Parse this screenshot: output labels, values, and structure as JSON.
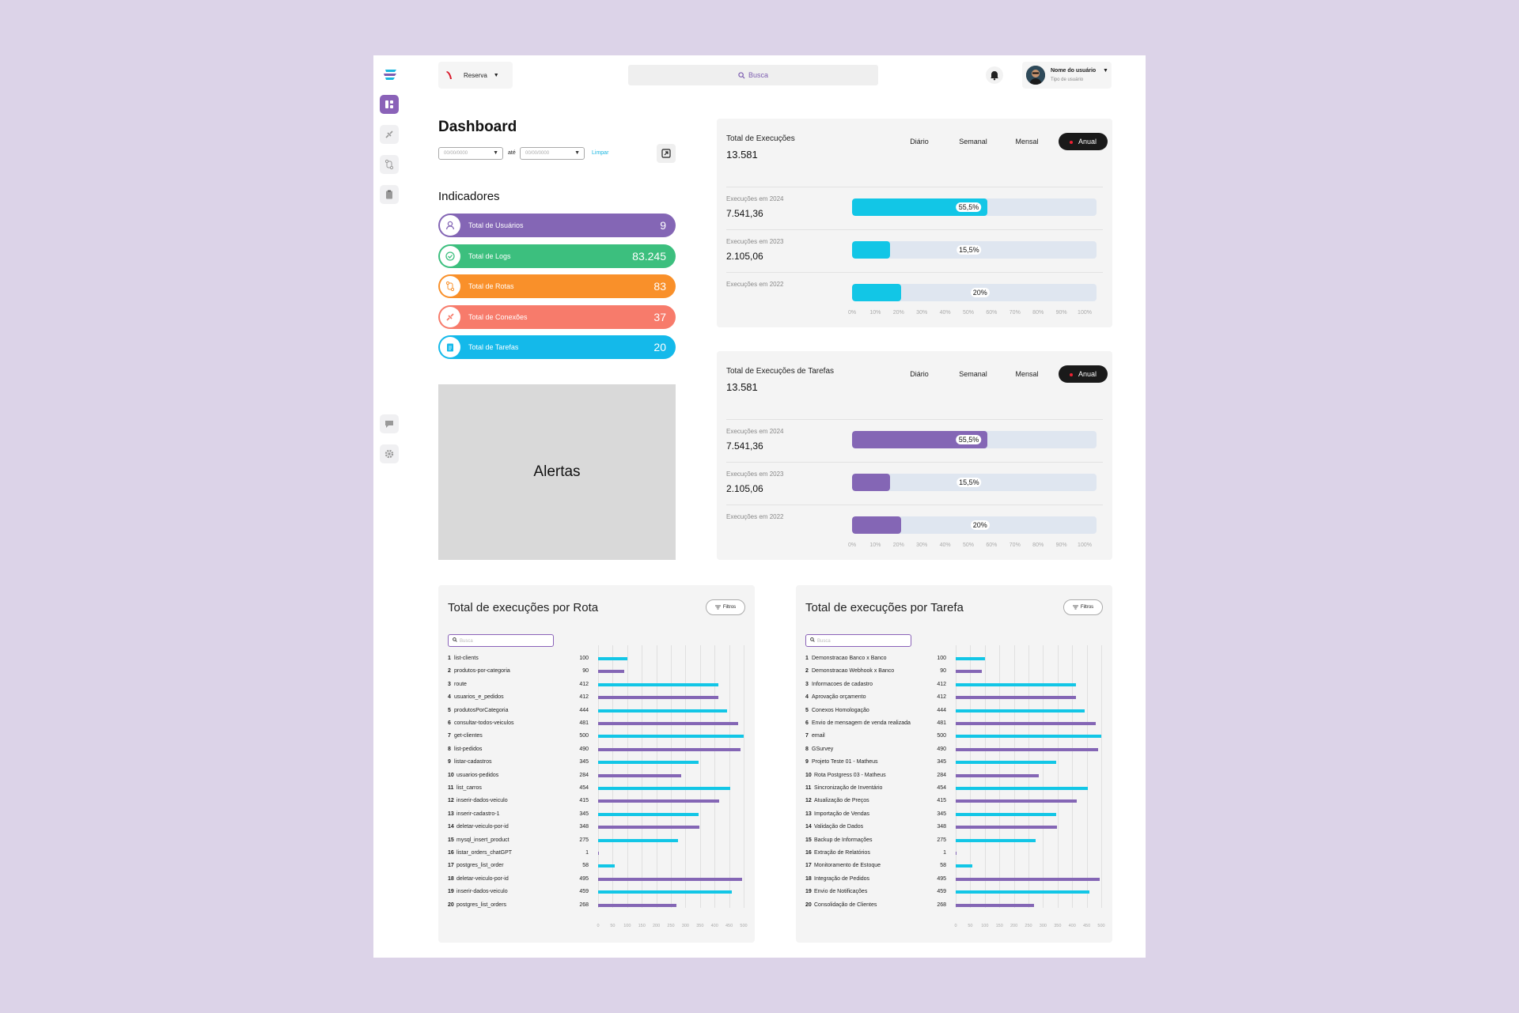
{
  "topbar": {
    "company": "Reserva",
    "search_placeholder": "Busca",
    "user_name": "Nome do usuário",
    "user_type": "Tipo de usuário"
  },
  "sidebar": {
    "icons": [
      "dashboard-icon",
      "connection-icon",
      "route-icon",
      "clipboard-icon",
      "chat-icon",
      "gear-icon"
    ]
  },
  "dashboard": {
    "title": "Dashboard",
    "date_from_placeholder": "00/00/0000",
    "date_to_placeholder": "00/00/0000",
    "ate": "até",
    "limpar": "Limpar"
  },
  "indicadores": {
    "title": "Indicadores",
    "items": [
      {
        "label": "Total de Usuários",
        "value": "9",
        "color": "#8466b5",
        "icon": "user-icon"
      },
      {
        "label": "Total de Logs",
        "value": "83.245",
        "color": "#3cbf7e",
        "icon": "check-icon"
      },
      {
        "label": "Total de Rotas",
        "value": "83",
        "color": "#f9902a",
        "icon": "route-icon"
      },
      {
        "label": "Total de Conexões",
        "value": "37",
        "color": "#f77b6b",
        "icon": "connection-icon"
      },
      {
        "label": "Total de Tarefas",
        "value": "20",
        "color": "#14b9ea",
        "icon": "clipboard-icon"
      }
    ]
  },
  "alertas": "Alertas",
  "execucoes": {
    "title": "Total de Execuções",
    "total": "13.581",
    "tabs": [
      "Diário",
      "Semanal",
      "Mensal",
      "Anual"
    ],
    "color": "#12c6e6",
    "rows": [
      {
        "label": "Execuções em  2024",
        "value": "7.541,36",
        "pct": 55.5,
        "pct_label": "55,5%"
      },
      {
        "label": "Execuções em  2023",
        "value": "2.105,06",
        "pct": 15.5,
        "pct_label": "15,5%"
      },
      {
        "label": "Execuções em  2022",
        "value": "",
        "pct": 20,
        "pct_label": "20%"
      }
    ],
    "axis": [
      "0%",
      "10%",
      "20%",
      "30%",
      "40%",
      "50%",
      "60%",
      "70%",
      "80%",
      "90%",
      "100%"
    ]
  },
  "tarefas_exec": {
    "title": "Total de Execuções de Tarefas",
    "total": "13.581",
    "tabs": [
      "Diário",
      "Semanal",
      "Mensal",
      "Anual"
    ],
    "color": "#8466b5",
    "rows": [
      {
        "label": "Execuções em  2024",
        "value": "7.541,36",
        "pct": 55.5,
        "pct_label": "55,5%"
      },
      {
        "label": "Execuções em  2023",
        "value": "2.105,06",
        "pct": 15.5,
        "pct_label": "15,5%"
      },
      {
        "label": "Execuções em  2022",
        "value": "",
        "pct": 20,
        "pct_label": "20%"
      }
    ],
    "axis": [
      "0%",
      "10%",
      "20%",
      "30%",
      "40%",
      "50%",
      "60%",
      "70%",
      "80%",
      "90%",
      "100%"
    ]
  },
  "colors": {
    "cyan": "#12c6e6",
    "purple": "#8466b5"
  },
  "chart_data": [
    {
      "type": "bar",
      "title": "Total de execuções por Rota",
      "filter_label": "Filtros",
      "search_placeholder": "Busca",
      "xlim": [
        0,
        500
      ],
      "axis": [
        "0",
        "50",
        "100",
        "150",
        "200",
        "250",
        "300",
        "350",
        "400",
        "450",
        "500"
      ],
      "categories": [
        "list-clients",
        "produtos-por-categoria",
        "route",
        "usuarios_e_pedidos",
        "produtosPorCategoria",
        "consultar-todos-veiculos",
        "get-clientes",
        "list-pedidos",
        "listar-cadastros",
        "usuarios-pedidos",
        "list_carros",
        "inserir-dados-veiculo",
        "inserir-cadastro-1",
        "deletar-veiculo-por-id",
        "mysql_insert_product",
        "listar_orders_chatGPT",
        "postgres_list_order",
        "deletar-veiculo-por-id",
        "inserir-dados-veiculo",
        "postgres_list_orders"
      ],
      "values": [
        100,
        90,
        412,
        412,
        444,
        481,
        500,
        490,
        345,
        284,
        454,
        415,
        345,
        348,
        275,
        1,
        58,
        495,
        459,
        268
      ]
    },
    {
      "type": "bar",
      "title": "Total de execuções por Tarefa",
      "filter_label": "Filtros",
      "search_placeholder": "Busca",
      "xlim": [
        0,
        500
      ],
      "axis": [
        "0",
        "50",
        "100",
        "150",
        "200",
        "250",
        "300",
        "350",
        "400",
        "450",
        "500"
      ],
      "categories": [
        "Demonstracao Banco x Banco",
        "Demonstracao Webhook x Banco",
        "Informacoes de cadastro",
        "Aprovação orçamento",
        "Conexos Homologação",
        "Envio de mensagem de venda realizada",
        "email",
        "GSurvey",
        "Projeto Teste 01 - Matheus",
        "Rota Postgress 03 - Matheus",
        "Sincronização de Inventário",
        "Atualização de Preços",
        "Importação de Vendas",
        "Validação de Dados",
        "Backup de Informações",
        "Extração de Relatórios",
        "Monitoramento de Estoque",
        "Integração de Pedidos",
        "Envio de Notificações",
        "Consolidação de Clientes"
      ],
      "values": [
        100,
        90,
        412,
        412,
        444,
        481,
        500,
        490,
        345,
        284,
        454,
        415,
        345,
        348,
        275,
        1,
        58,
        495,
        459,
        268
      ]
    }
  ]
}
